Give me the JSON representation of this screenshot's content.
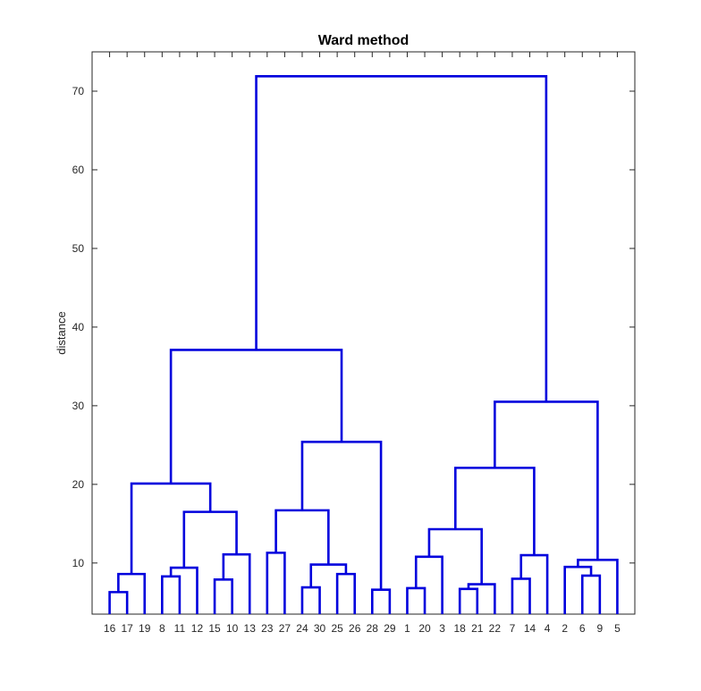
{
  "chart_data": {
    "type": "dendrogram",
    "title": "Ward method",
    "xlabel": "",
    "ylabel": "distance",
    "ylim": [
      3.5,
      75
    ],
    "yticks": [
      10,
      20,
      30,
      40,
      50,
      60,
      70
    ],
    "grid": false,
    "line_color": "#0000dd",
    "leaf_order": [
      "16",
      "17",
      "19",
      "8",
      "11",
      "12",
      "15",
      "10",
      "13",
      "23",
      "27",
      "24",
      "30",
      "25",
      "26",
      "28",
      "29",
      "1",
      "20",
      "3",
      "18",
      "21",
      "22",
      "7",
      "14",
      "4",
      "2",
      "6",
      "9",
      "5"
    ],
    "merges": [
      {
        "id": "A",
        "left": "16",
        "right": "17",
        "height": 6.3
      },
      {
        "id": "B",
        "left": "A",
        "right": "19",
        "height": 8.6
      },
      {
        "id": "C",
        "left": "8",
        "right": "11",
        "height": 8.3
      },
      {
        "id": "D",
        "left": "C",
        "right": "12",
        "height": 9.4
      },
      {
        "id": "E",
        "left": "15",
        "right": "10",
        "height": 7.9
      },
      {
        "id": "F",
        "left": "E",
        "right": "13",
        "height": 11.1
      },
      {
        "id": "G",
        "left": "D",
        "right": "F",
        "height": 16.5
      },
      {
        "id": "H",
        "left": "B",
        "right": "G",
        "height": 20.1
      },
      {
        "id": "I",
        "left": "23",
        "right": "27",
        "height": 11.3
      },
      {
        "id": "J",
        "left": "24",
        "right": "30",
        "height": 6.9
      },
      {
        "id": "K",
        "left": "25",
        "right": "26",
        "height": 8.6
      },
      {
        "id": "L",
        "left": "J",
        "right": "K",
        "height": 9.8
      },
      {
        "id": "M",
        "left": "I",
        "right": "L",
        "height": 16.7
      },
      {
        "id": "N",
        "left": "28",
        "right": "29",
        "height": 6.6
      },
      {
        "id": "O",
        "left": "M",
        "right": "N",
        "height": 25.4
      },
      {
        "id": "P",
        "left": "H",
        "right": "O",
        "height": 37.1
      },
      {
        "id": "Q",
        "left": "1",
        "right": "20",
        "height": 6.8
      },
      {
        "id": "R",
        "left": "Q",
        "right": "3",
        "height": 10.8
      },
      {
        "id": "S",
        "left": "18",
        "right": "21",
        "height": 6.7
      },
      {
        "id": "T",
        "left": "S",
        "right": "22",
        "height": 7.3
      },
      {
        "id": "U",
        "left": "R",
        "right": "T",
        "height": 14.3
      },
      {
        "id": "V",
        "left": "7",
        "right": "14",
        "height": 8.0
      },
      {
        "id": "W",
        "left": "V",
        "right": "4",
        "height": 11.0
      },
      {
        "id": "X",
        "left": "U",
        "right": "W",
        "height": 22.1
      },
      {
        "id": "Y",
        "left": "6",
        "right": "9",
        "height": 8.4
      },
      {
        "id": "Z",
        "left": "2",
        "right": "Y",
        "height": 9.5
      },
      {
        "id": "AA",
        "left": "Z",
        "right": "5",
        "height": 10.4
      },
      {
        "id": "AB",
        "left": "X",
        "right": "AA",
        "height": 30.5
      },
      {
        "id": "ROOT",
        "left": "P",
        "right": "AB",
        "height": 71.9
      }
    ]
  }
}
